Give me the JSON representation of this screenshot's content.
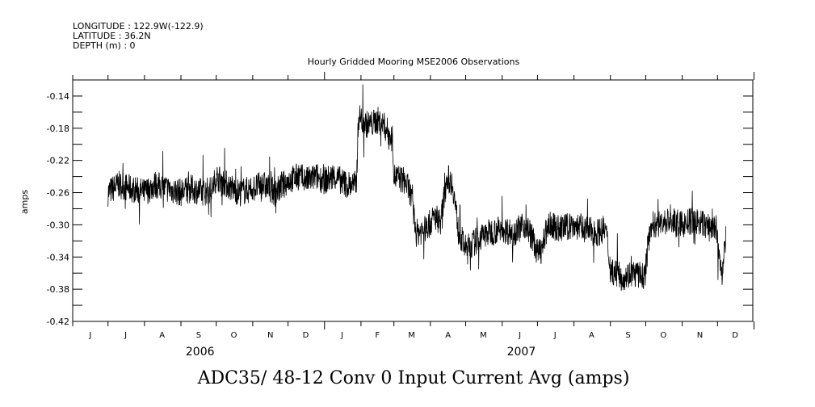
{
  "header": {
    "longitude": "LONGITUDE : 122.9W(-122.9)",
    "latitude": "LATITUDE : 36.2N",
    "depth": "DEPTH (m) : 0"
  },
  "chart_data": {
    "type": "line",
    "title": "Hourly Gridded Mooring MSE2006 Observations",
    "ylabel": "amps",
    "xlabel": "ADC35/ 48-12 Conv 0 Input Current Avg (amps)",
    "ylim": [
      -0.42,
      -0.12
    ],
    "yticks": [
      -0.14,
      -0.18,
      -0.22,
      -0.26,
      -0.3,
      -0.34,
      -0.38,
      -0.42
    ],
    "ytick_labels": [
      "-0.14",
      "-0.18",
      "-0.22",
      "-0.26",
      "-0.30",
      "-0.34",
      "-0.38",
      "-0.42"
    ],
    "xlim": [
      "2006-06-01",
      "2007-12-31"
    ],
    "month_labels": [
      "J",
      "J",
      "A",
      "S",
      "O",
      "N",
      "D",
      "J",
      "F",
      "M",
      "A",
      "M",
      "J",
      "J",
      "A",
      "S",
      "O",
      "N",
      "D"
    ],
    "month_centers": [
      "2006-06-16",
      "2006-07-16",
      "2006-08-16",
      "2006-09-16",
      "2006-10-16",
      "2006-11-16",
      "2006-12-16",
      "2007-01-16",
      "2007-02-15",
      "2007-03-16",
      "2007-04-16",
      "2007-05-16",
      "2007-06-16",
      "2007-07-16",
      "2007-08-16",
      "2007-09-16",
      "2007-10-16",
      "2007-11-16",
      "2007-12-16"
    ],
    "year_labels": [
      "2006",
      "2007"
    ],
    "year_label_dates": [
      "2006-10-01",
      "2007-07-01"
    ],
    "grid": false,
    "series": [
      {
        "x": [
          "2006-07-01",
          "2006-07-10",
          "2006-07-20",
          "2006-08-01",
          "2006-08-10",
          "2006-08-20",
          "2006-09-01",
          "2006-09-10",
          "2006-09-20",
          "2006-09-28",
          "2006-10-01",
          "2006-10-10",
          "2006-10-20",
          "2006-11-01",
          "2006-11-10",
          "2006-11-20",
          "2006-12-01",
          "2006-12-10",
          "2006-12-18",
          "2006-12-25",
          "2007-01-01",
          "2007-01-10",
          "2007-01-20",
          "2007-01-28",
          "2007-01-30",
          "2007-02-05",
          "2007-02-10",
          "2007-02-15",
          "2007-02-20",
          "2007-02-28",
          "2007-03-01",
          "2007-03-10",
          "2007-03-15",
          "2007-03-20",
          "2007-03-28",
          "2007-04-05",
          "2007-04-10",
          "2007-04-15",
          "2007-04-20",
          "2007-04-25",
          "2007-05-01",
          "2007-05-10",
          "2007-05-20",
          "2007-06-01",
          "2007-06-10",
          "2007-06-20",
          "2007-06-25",
          "2007-07-01",
          "2007-07-05",
          "2007-07-10",
          "2007-07-20",
          "2007-08-01",
          "2007-08-10",
          "2007-08-20",
          "2007-08-28",
          "2007-09-01",
          "2007-09-10",
          "2007-09-20",
          "2007-09-30",
          "2007-10-05",
          "2007-10-10",
          "2007-10-20",
          "2007-11-01",
          "2007-11-10",
          "2007-11-20",
          "2007-11-30",
          "2007-12-05",
          "2007-12-08"
        ],
        "y": [
          -0.26,
          -0.25,
          -0.255,
          -0.26,
          -0.25,
          -0.255,
          -0.26,
          -0.255,
          -0.26,
          -0.255,
          -0.24,
          -0.25,
          -0.26,
          -0.255,
          -0.25,
          -0.26,
          -0.245,
          -0.24,
          -0.245,
          -0.24,
          -0.245,
          -0.24,
          -0.25,
          -0.25,
          -0.165,
          -0.175,
          -0.175,
          -0.17,
          -0.175,
          -0.195,
          -0.24,
          -0.245,
          -0.26,
          -0.31,
          -0.305,
          -0.29,
          -0.295,
          -0.24,
          -0.25,
          -0.31,
          -0.33,
          -0.32,
          -0.31,
          -0.305,
          -0.31,
          -0.3,
          -0.31,
          -0.335,
          -0.33,
          -0.3,
          -0.305,
          -0.3,
          -0.305,
          -0.31,
          -0.305,
          -0.355,
          -0.365,
          -0.36,
          -0.365,
          -0.3,
          -0.3,
          -0.295,
          -0.3,
          -0.295,
          -0.3,
          -0.305,
          -0.37,
          -0.31
        ]
      }
    ]
  }
}
